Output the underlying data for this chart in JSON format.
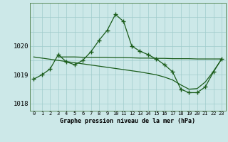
{
  "title": "Graphe pression niveau de la mer (hPa)",
  "bg": "#cce8e8",
  "line_color": "#1a5c1a",
  "hours": [
    0,
    1,
    2,
    3,
    4,
    5,
    6,
    7,
    8,
    9,
    10,
    11,
    12,
    13,
    14,
    15,
    16,
    17,
    18,
    19,
    20,
    21,
    22,
    23
  ],
  "series_main": [
    1018.85,
    1019.0,
    1019.2,
    1019.7,
    1019.45,
    1019.35,
    1019.5,
    1019.8,
    1020.2,
    1020.55,
    1021.1,
    1020.85,
    1020.0,
    1019.82,
    1019.7,
    1019.55,
    1019.35,
    1019.1,
    1018.5,
    1018.38,
    1018.38,
    1018.58,
    1019.1,
    1019.55
  ],
  "series_trend": [
    1019.62,
    1019.58,
    1019.54,
    1019.5,
    1019.46,
    1019.42,
    1019.38,
    1019.34,
    1019.3,
    1019.26,
    1019.22,
    1019.18,
    1019.14,
    1019.1,
    1019.05,
    1019.0,
    1018.92,
    1018.82,
    1018.65,
    1018.5,
    1018.52,
    1018.75,
    1019.12,
    1019.55
  ],
  "series_flat": [
    null,
    null,
    null,
    1019.62,
    1019.62,
    1019.62,
    1019.61,
    1019.61,
    1019.61,
    1019.61,
    1019.6,
    1019.6,
    1019.59,
    1019.58,
    1019.58,
    1019.57,
    1019.57,
    1019.56,
    1019.56,
    1019.56,
    1019.55,
    1019.55,
    1019.55,
    1019.55
  ],
  "ylim": [
    1017.75,
    1021.5
  ],
  "yticks": [
    1018,
    1019,
    1020
  ],
  "xlim": [
    -0.5,
    23.5
  ],
  "figw": 3.2,
  "figh": 2.0,
  "dpi": 100
}
